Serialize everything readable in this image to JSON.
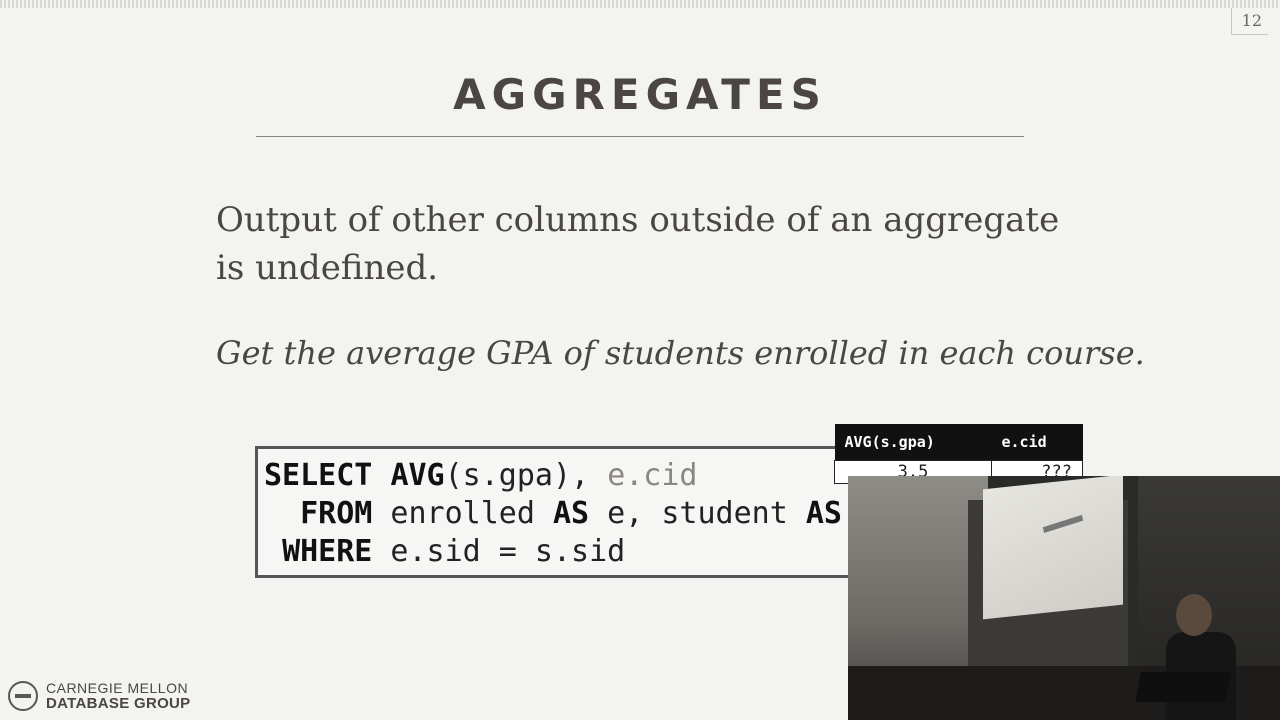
{
  "slide": {
    "page_number": "12",
    "title": "AGGREGATES",
    "body_text": "Output of other columns outside of an aggregate is undefined.",
    "italic_text": "Get the average GPA of students enrolled in each course."
  },
  "code": {
    "line1": {
      "kw": "SELECT",
      "fn": "AVG",
      "rest": "(s.gpa), ",
      "grey": "e.cid"
    },
    "line2": {
      "kw1": "FROM",
      "mid1": " enrolled ",
      "kw2": "AS",
      "mid2": " e, student ",
      "kw3": "AS"
    },
    "line3": {
      "kw": "WHERE",
      "rest": " e.sid = s.sid"
    }
  },
  "result_table": {
    "headers": [
      "AVG(s.gpa)",
      "e.cid"
    ],
    "row": [
      "3.5",
      "???"
    ]
  },
  "logo": {
    "line1": "CARNEGIE MELLON",
    "line2": "DATABASE GROUP"
  }
}
